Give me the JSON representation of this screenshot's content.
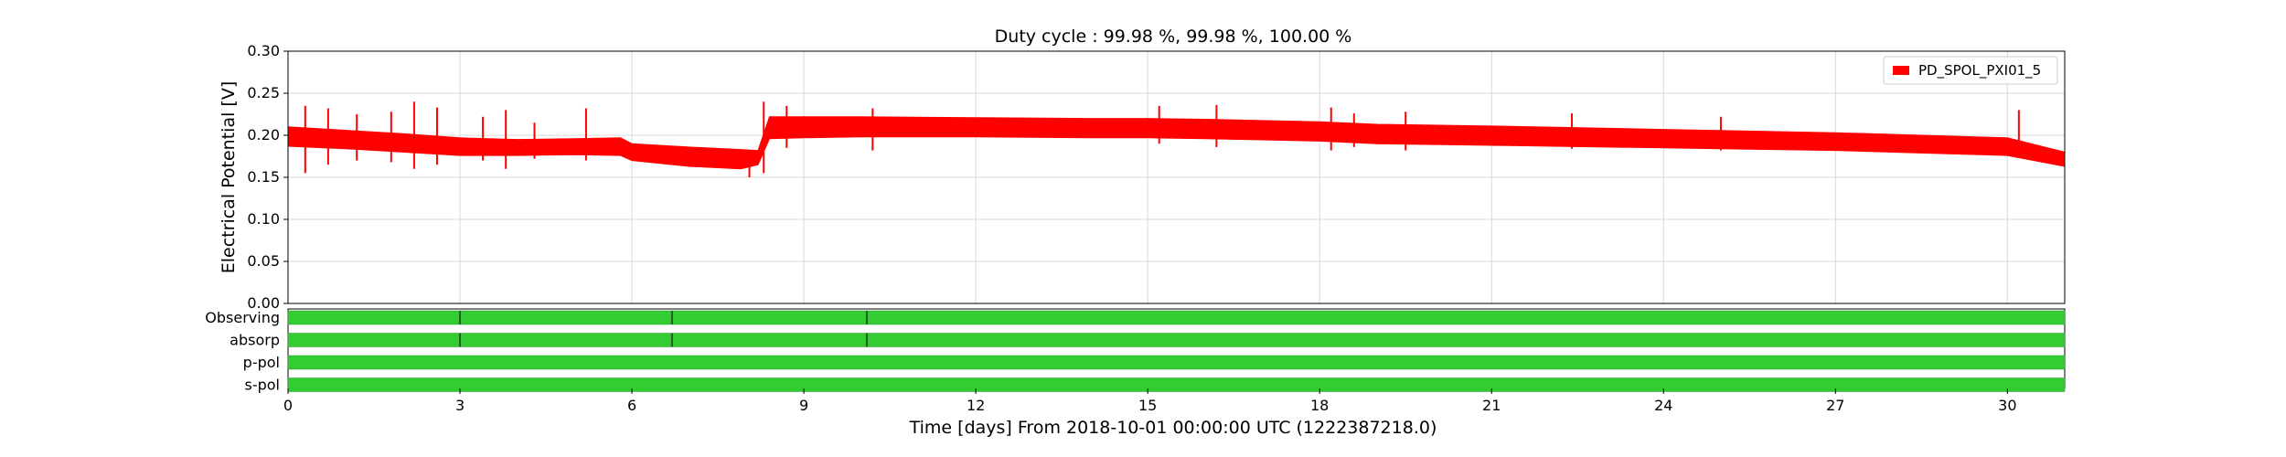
{
  "chart_data": {
    "type": "line",
    "title": "Duty cycle : 99.98 %, 99.98 %, 100.00 %",
    "xlabel": "Time [days] From 2018-10-01 00:00:00 UTC (1222387218.0)",
    "ylabel": "Electrical Potential [V]",
    "xlim": [
      0,
      31
    ],
    "ylim": [
      0,
      0.3
    ],
    "x_ticks": [
      0,
      3,
      6,
      9,
      12,
      15,
      18,
      21,
      24,
      27,
      30
    ],
    "y_ticks": [
      "0.00",
      "0.05",
      "0.10",
      "0.15",
      "0.20",
      "0.25",
      "0.30"
    ],
    "grid": true,
    "legend_position": "top-right",
    "series": [
      {
        "name": "PD_SPOL_PXI01_5",
        "color": "#ff0000",
        "style": "min-max band",
        "x": [
          0,
          1,
          2,
          3,
          4,
          5,
          5.8,
          6,
          7,
          7.9,
          8.2,
          8.4,
          9,
          10,
          12,
          14,
          15,
          16,
          18,
          19,
          21,
          24,
          27,
          30,
          31
        ],
        "ymin": [
          0.187,
          0.184,
          0.18,
          0.176,
          0.176,
          0.177,
          0.176,
          0.17,
          0.163,
          0.16,
          0.165,
          0.196,
          0.197,
          0.198,
          0.198,
          0.197,
          0.197,
          0.196,
          0.193,
          0.19,
          0.188,
          0.185,
          0.182,
          0.176,
          0.163
        ],
        "ymax": [
          0.21,
          0.206,
          0.202,
          0.197,
          0.195,
          0.196,
          0.197,
          0.19,
          0.186,
          0.183,
          0.182,
          0.222,
          0.222,
          0.222,
          0.221,
          0.22,
          0.22,
          0.219,
          0.216,
          0.213,
          0.211,
          0.207,
          0.203,
          0.197,
          0.18
        ],
        "spikes": [
          {
            "x": 0.3,
            "low": 0.155,
            "high": 0.235
          },
          {
            "x": 0.7,
            "low": 0.165,
            "high": 0.232
          },
          {
            "x": 1.2,
            "low": 0.17,
            "high": 0.225
          },
          {
            "x": 1.8,
            "low": 0.168,
            "high": 0.228
          },
          {
            "x": 2.2,
            "low": 0.16,
            "high": 0.24
          },
          {
            "x": 2.6,
            "low": 0.165,
            "high": 0.233
          },
          {
            "x": 3.4,
            "low": 0.17,
            "high": 0.222
          },
          {
            "x": 3.8,
            "low": 0.16,
            "high": 0.23
          },
          {
            "x": 4.3,
            "low": 0.172,
            "high": 0.215
          },
          {
            "x": 5.2,
            "low": 0.17,
            "high": 0.232
          },
          {
            "x": 8.05,
            "low": 0.15,
            "high": 0.18
          },
          {
            "x": 8.3,
            "low": 0.155,
            "high": 0.24
          },
          {
            "x": 8.7,
            "low": 0.185,
            "high": 0.235
          },
          {
            "x": 10.2,
            "low": 0.182,
            "high": 0.232
          },
          {
            "x": 15.2,
            "low": 0.19,
            "high": 0.235
          },
          {
            "x": 16.2,
            "low": 0.186,
            "high": 0.236
          },
          {
            "x": 18.2,
            "low": 0.182,
            "high": 0.233
          },
          {
            "x": 18.6,
            "low": 0.186,
            "high": 0.226
          },
          {
            "x": 19.5,
            "low": 0.182,
            "high": 0.228
          },
          {
            "x": 22.4,
            "low": 0.184,
            "high": 0.226
          },
          {
            "x": 25.0,
            "low": 0.182,
            "high": 0.222
          },
          {
            "x": 30.2,
            "low": 0.175,
            "high": 0.23
          }
        ]
      }
    ],
    "segments": {
      "color": "#33cc33",
      "rows": [
        {
          "label": "Observing",
          "gaps": [
            3.0,
            6.7,
            10.1
          ]
        },
        {
          "label": "absorp",
          "gaps": [
            3.0,
            6.7,
            10.1
          ]
        },
        {
          "label": "p-pol",
          "gaps": []
        },
        {
          "label": "s-pol",
          "gaps": []
        }
      ]
    }
  }
}
